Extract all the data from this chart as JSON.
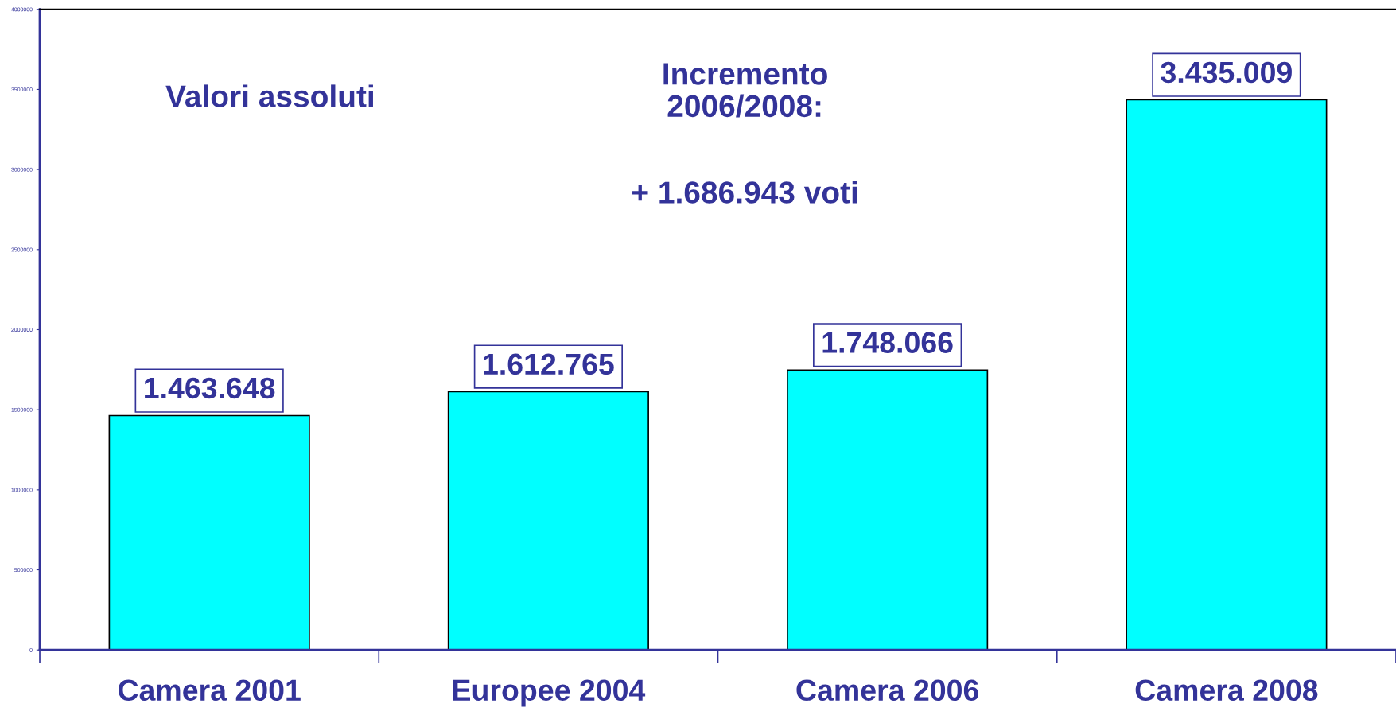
{
  "chart_data": {
    "type": "bar",
    "categories": [
      "Camera 2001",
      "Europee 2004",
      "Camera 2006",
      "Camera 2008"
    ],
    "values": [
      1463648,
      1612765,
      1748066,
      3435009
    ],
    "value_labels": [
      "1.463.648",
      "1.612.765",
      "1.748.066",
      "3.435.009"
    ],
    "color": "#00ffff",
    "ylim": [
      0,
      4000000
    ],
    "yticks": [
      0,
      500000,
      1000000,
      1500000,
      2000000,
      2500000,
      3000000,
      3500000,
      4000000
    ],
    "annotations": [
      "Valori assoluti",
      "Incremento\n2006/2008:",
      "+ 1.686.943 voti"
    ],
    "grid": false,
    "legend": false
  }
}
